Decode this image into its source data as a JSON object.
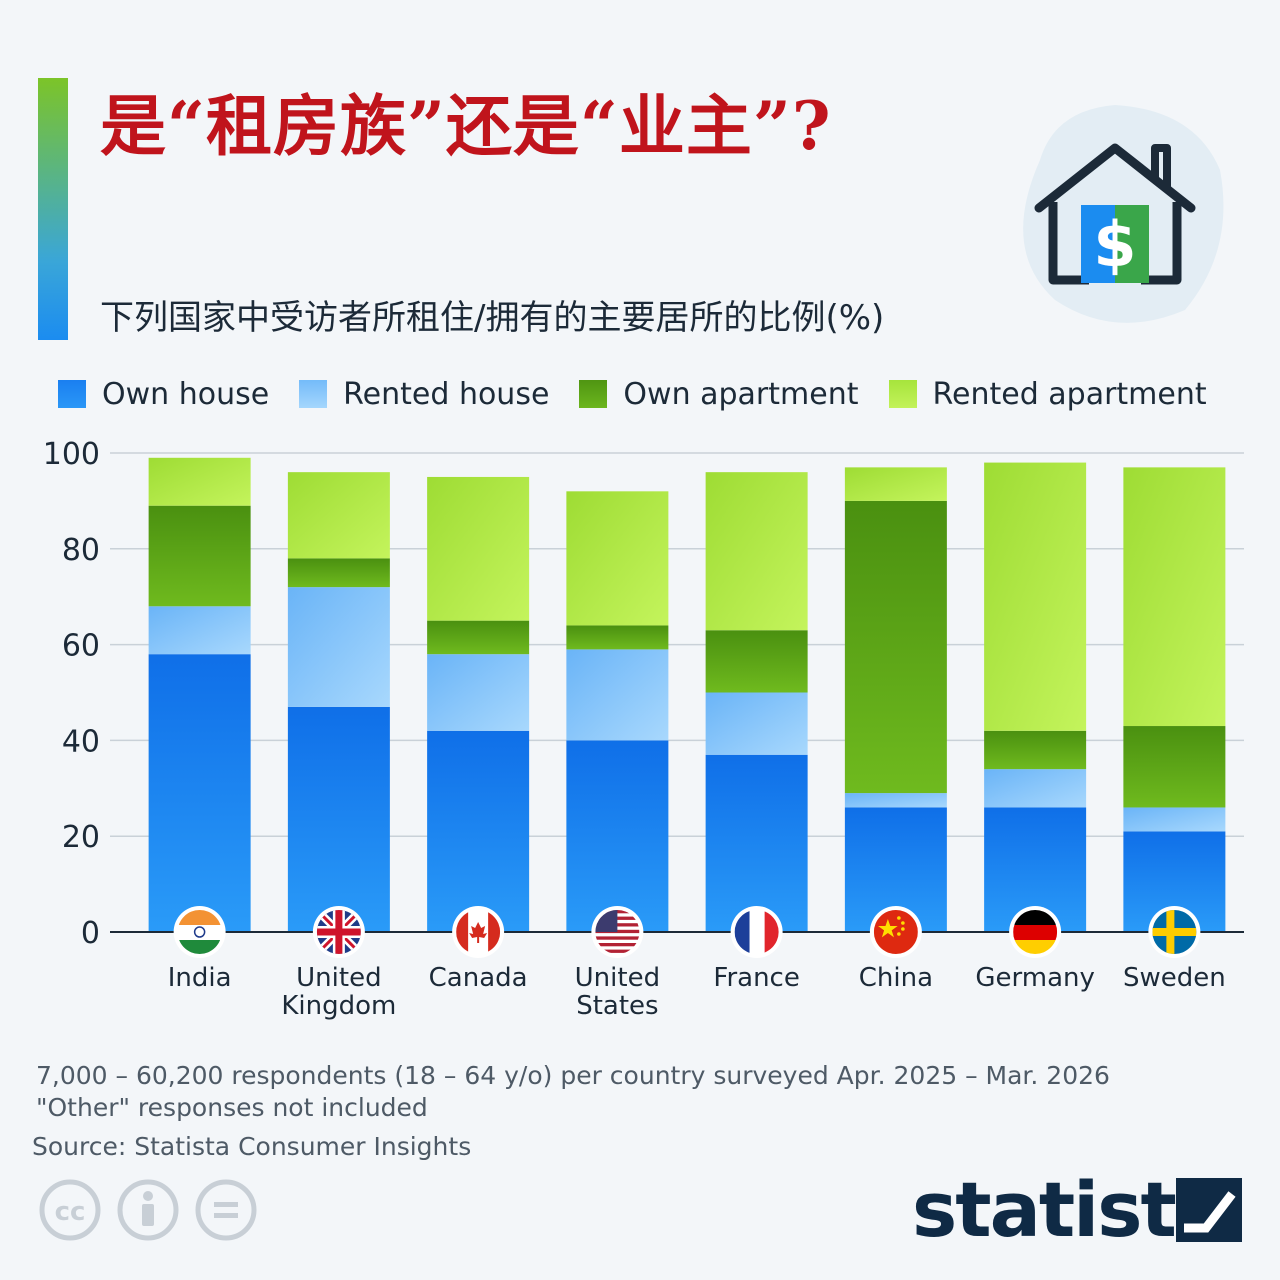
{
  "title": "是“租房族”还是“业主”?",
  "subtitle": "下列国家中受访者所租住/拥有的主要居所的比例(%)",
  "legend": [
    {
      "label": "Own house",
      "color": "#1a7ff0"
    },
    {
      "label": "Rented house",
      "color": "#8cc8fb"
    },
    {
      "label": "Own apartment",
      "color": "#5fa818"
    },
    {
      "label": "Rented apartment",
      "color": "#b4ec4a"
    }
  ],
  "chart_data": {
    "type": "bar",
    "stacked": true,
    "categories": [
      "India",
      "United Kingdom",
      "Canada",
      "United States",
      "France",
      "China",
      "Germany",
      "Sweden"
    ],
    "category_lines": [
      [
        "India"
      ],
      [
        "United",
        "Kingdom"
      ],
      [
        "Canada"
      ],
      [
        "United",
        "States"
      ],
      [
        "France"
      ],
      [
        "China"
      ],
      [
        "Germany"
      ],
      [
        "Sweden"
      ]
    ],
    "flags": [
      "india-flag",
      "united-kingdom-flag",
      "canada-flag",
      "united-states-flag",
      "france-flag",
      "china-flag",
      "germany-flag",
      "sweden-flag"
    ],
    "series": [
      {
        "name": "Own house",
        "color": "#1a7ff0",
        "values": [
          58,
          47,
          42,
          40,
          37,
          26,
          26,
          21
        ]
      },
      {
        "name": "Rented house",
        "color": "#8cc8fb",
        "values": [
          10,
          25,
          16,
          19,
          13,
          3,
          8,
          5
        ]
      },
      {
        "name": "Own apartment",
        "color": "#5fa818",
        "values": [
          21,
          6,
          7,
          5,
          13,
          61,
          8,
          17
        ]
      },
      {
        "name": "Rented apartment",
        "color": "#b4ec4a",
        "values": [
          10,
          18,
          30,
          28,
          33,
          7,
          56,
          54
        ]
      }
    ],
    "ylim": [
      0,
      100
    ],
    "yticks": [
      0,
      20,
      40,
      60,
      80,
      100
    ],
    "grid": true,
    "legend_position": "top"
  },
  "notes": {
    "respondents": "7,000 – 60,200 respondents (18 – 64 y/o) per country surveyed Apr. 2025 – Mar. 2026",
    "other": "\"Other\" responses not included"
  },
  "source": "Source: Statista Consumer Insights",
  "license_icons": [
    "creative-commons-icon",
    "attribution-icon",
    "no-derivatives-icon"
  ],
  "brand": {
    "name": "statista",
    "color": "#0f2a45"
  }
}
